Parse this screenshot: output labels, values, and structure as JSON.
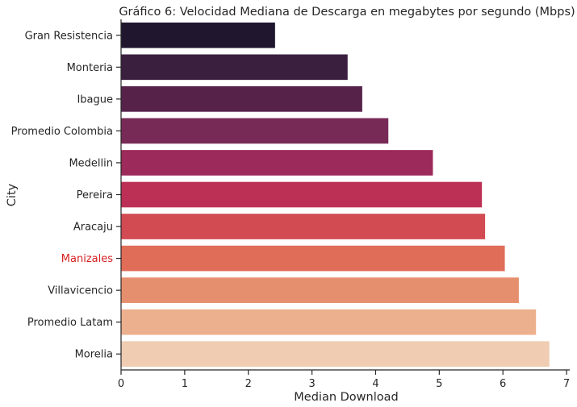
{
  "chart_data": {
    "type": "bar",
    "orientation": "horizontal",
    "title": "Gráfico 6: Velocidad Mediana de Descarga en megabytes por segundo (Mbps)",
    "xlabel": "Median Download",
    "ylabel": "City",
    "xlim": [
      0,
      7.05
    ],
    "xticks": [
      0,
      1,
      2,
      3,
      4,
      5,
      6,
      7
    ],
    "grid": false,
    "categories": [
      "Gran Resistencia",
      "Monteria",
      "Ibague",
      "Promedio Colombia",
      "Medellin",
      "Pereira",
      "Aracaju",
      "Manizales",
      "Villavicencio",
      "Promedio Latam",
      "Morelia"
    ],
    "values": [
      2.42,
      3.56,
      3.79,
      4.2,
      4.9,
      5.67,
      5.72,
      6.03,
      6.25,
      6.52,
      6.73
    ],
    "colors": [
      "#20172f",
      "#3a1f3f",
      "#57224a",
      "#782a57",
      "#9c2a5a",
      "#bb3054",
      "#d24a52",
      "#e06d58",
      "#e68f6e",
      "#ecb08f",
      "#f0ccb2"
    ],
    "label_colors": [
      "#262626",
      "#262626",
      "#262626",
      "#262626",
      "#262626",
      "#262626",
      "#262626",
      "#d62020",
      "#262626",
      "#262626",
      "#262626"
    ],
    "highlighted_category": "Manizales"
  }
}
